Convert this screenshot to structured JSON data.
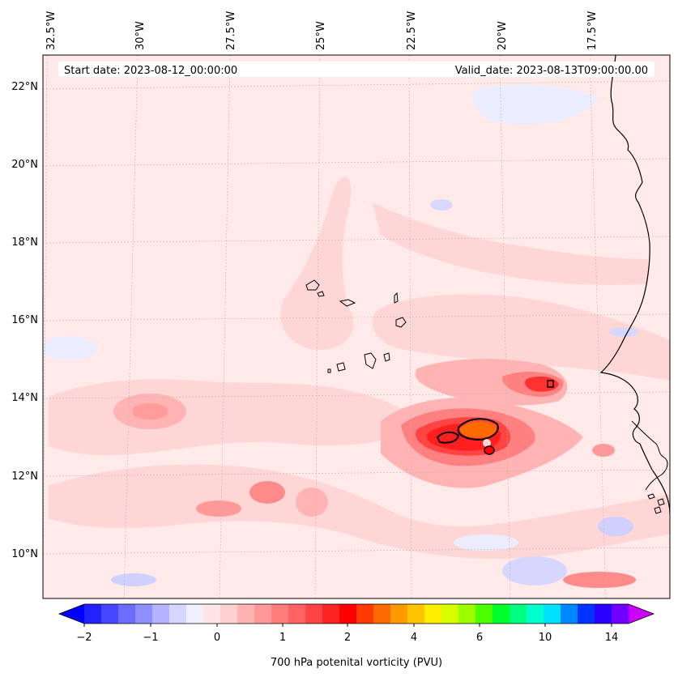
{
  "map": {
    "start_date": "Start date: 2023-08-12_00:00:00",
    "valid_date": "Valid_date: 2023-08-13T09:00:00.00",
    "lon_labels": [
      "32.5°W",
      "30°W",
      "27.5°W",
      "25°W",
      "22.5°W",
      "20°W",
      "17.5°W"
    ],
    "lat_labels": [
      "22°N",
      "20°N",
      "18°N",
      "16°N",
      "14°N",
      "12°N",
      "10°N"
    ],
    "colorbar": {
      "label": "700 hPa potenital vorticity (PVU)",
      "tick_labels": [
        "−2",
        "−1",
        "0",
        "1",
        "2",
        "4",
        "6",
        "10",
        "14"
      ],
      "colors": [
        "#2222ff",
        "#4747ff",
        "#6c6cff",
        "#8f8fff",
        "#b3b3ff",
        "#d6d6ff",
        "#efefff",
        "#ffe6e6",
        "#ffd0d0",
        "#ffb3b3",
        "#ff9999",
        "#ff7d7d",
        "#ff6262",
        "#ff4444",
        "#ff2424",
        "#ff0000",
        "#ff3a00",
        "#ff6a00",
        "#ff9900",
        "#ffc400",
        "#ffee00",
        "#d6ff00",
        "#9bff00",
        "#4cff00",
        "#00ff2a",
        "#00ff80",
        "#00ffcc",
        "#00e0ff",
        "#0088ff",
        "#0033ff",
        "#2a00ff",
        "#7000ff"
      ],
      "under_color": "#0000ff",
      "over_color": "#cc00ff"
    }
  }
}
